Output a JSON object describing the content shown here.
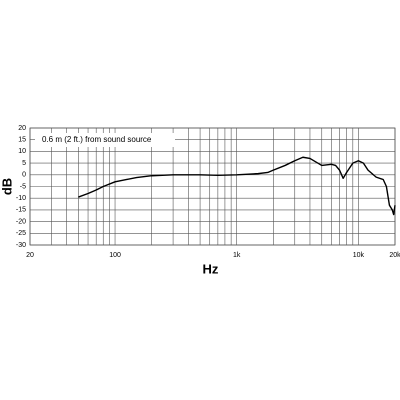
{
  "chart_data": {
    "type": "line",
    "xscale": "log",
    "grid": true,
    "xlabel": "Hz",
    "ylabel": "dB",
    "annotation": "0.6 m (2 ft.) from sound source",
    "color": "#000000",
    "xlim": [
      20,
      20000
    ],
    "ylim": [
      -30,
      20
    ],
    "xticks": [
      20,
      100,
      {
        "value": 1000,
        "label": "1k"
      },
      {
        "value": 10000,
        "label": "10k"
      },
      {
        "value": 20000,
        "label": "20k"
      }
    ],
    "xminor_ticks": [
      30,
      40,
      50,
      60,
      70,
      80,
      90,
      200,
      300,
      400,
      500,
      600,
      700,
      800,
      900,
      2000,
      3000,
      4000,
      5000,
      6000,
      7000,
      8000,
      9000
    ],
    "yticks": [
      20,
      15,
      10,
      5,
      0,
      -5,
      -10,
      -15,
      -20,
      -25,
      -30
    ],
    "x": [
      50,
      60,
      70,
      80,
      100,
      125,
      150,
      200,
      300,
      500,
      700,
      1000,
      1500,
      1800,
      2000,
      2500,
      3000,
      3500,
      4000,
      5000,
      6000,
      6500,
      7000,
      7500,
      8000,
      9000,
      10000,
      11000,
      12000,
      14000,
      16000,
      17000,
      18000,
      19000,
      19500,
      20000
    ],
    "values": [
      -9.5,
      -8,
      -6.5,
      -5,
      -3,
      -2,
      -1.2,
      -0.4,
      0,
      0,
      -0.2,
      0,
      0.5,
      1,
      2,
      4,
      6,
      7.5,
      7,
      4,
      4.5,
      4,
      2,
      -1.5,
      1,
      5,
      6,
      5,
      2,
      -1,
      -2,
      -5,
      -13,
      -15,
      -17,
      -13
    ]
  }
}
